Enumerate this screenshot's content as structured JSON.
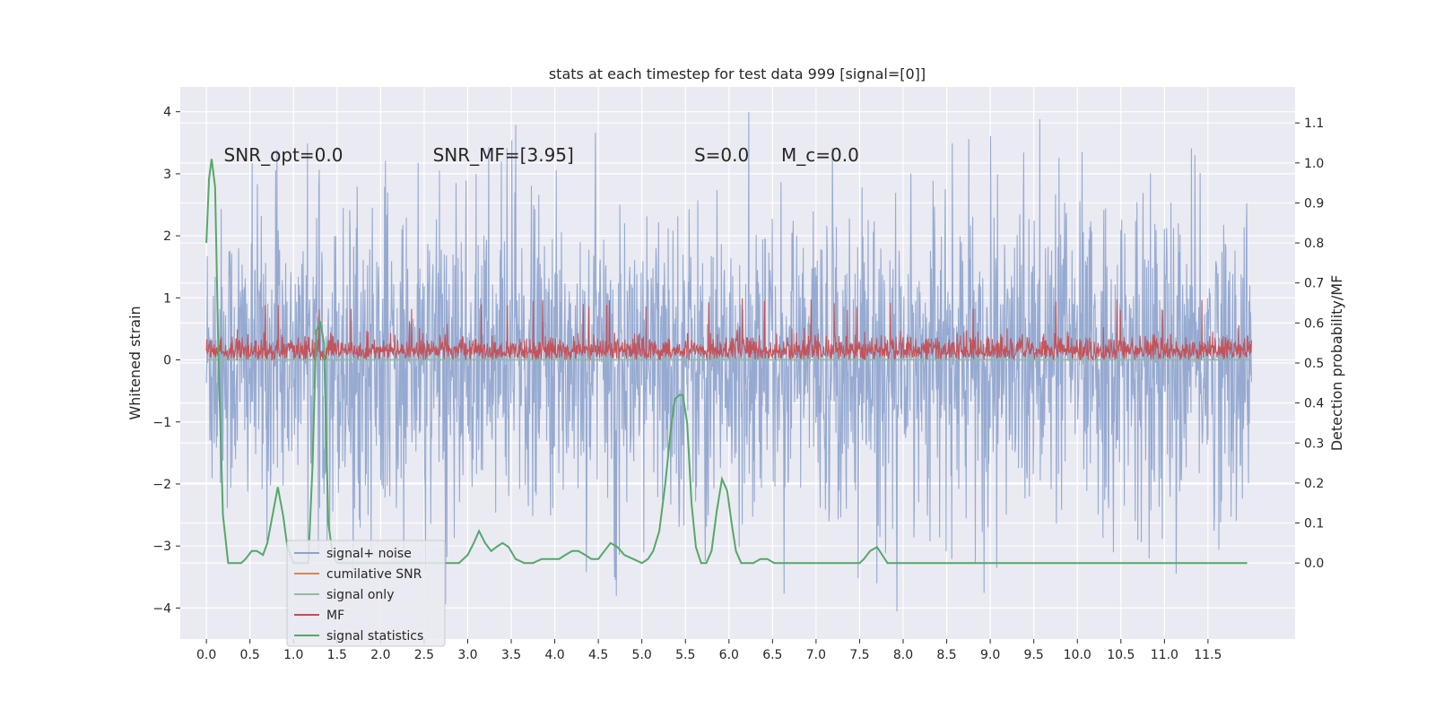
{
  "chart_data": {
    "type": "line",
    "title": "stats at each timestep for test data 999 [signal=[0]]",
    "xlabel": "",
    "ylabel": "Whitened strain",
    "y2label": "Detection probability/MF",
    "xlim": [
      -0.3,
      12.5
    ],
    "ylim": [
      -4.5,
      4.4
    ],
    "y2lim": [
      -0.19,
      1.19
    ],
    "x_ticks": [
      0.0,
      0.5,
      1.0,
      1.5,
      2.0,
      2.5,
      3.0,
      3.5,
      4.0,
      4.5,
      5.0,
      5.5,
      6.0,
      6.5,
      7.0,
      7.5,
      8.0,
      8.5,
      9.0,
      9.5,
      10.0,
      10.5,
      11.0,
      11.5
    ],
    "x_tick_labels": [
      "0.0",
      "0.5",
      "1.0",
      "1.5",
      "2.0",
      "2.5",
      "3.0",
      "3.5",
      "4.0",
      "4.5",
      "5.0",
      "5.5",
      "6.0",
      "6.5",
      "7.0",
      "7.5",
      "8.0",
      "8.5",
      "9.0",
      "9.5",
      "10.0",
      "10.5",
      "11.0",
      "11.5"
    ],
    "y_ticks": [
      -4,
      -3,
      -2,
      -1,
      0,
      1,
      2,
      3,
      4
    ],
    "y_tick_labels": [
      "−4",
      "−3",
      "−2",
      "−1",
      "0",
      "1",
      "2",
      "3",
      "4"
    ],
    "y2_ticks": [
      0.0,
      0.1,
      0.2,
      0.3,
      0.4,
      0.5,
      0.6,
      0.7,
      0.8,
      0.9,
      1.0,
      1.1
    ],
    "y2_tick_labels": [
      "0.0",
      "0.1",
      "0.2",
      "0.3",
      "0.4",
      "0.5",
      "0.6",
      "0.7",
      "0.8",
      "0.9",
      "1.0",
      "1.1"
    ],
    "grid": true,
    "legend_position": "lower-left",
    "annotations": [
      {
        "text": "SNR_opt=0.0",
        "x": 0.2,
        "y": 3.2
      },
      {
        "text": "SNR_MF=[3.95]",
        "x": 2.6,
        "y": 3.2
      },
      {
        "text": "S=0.0",
        "x": 5.6,
        "y": 3.2
      },
      {
        "text": "M_c=0.0",
        "x": 6.6,
        "y": 3.2
      }
    ],
    "series": [
      {
        "name": "signal+ noise",
        "axis": "left",
        "color": "#8da3cd",
        "style": "dense-noise",
        "x_range": [
          0.0,
          12.0
        ],
        "min": -4.1,
        "max": 4.0,
        "typical_envelope": [
          -2.0,
          2.0
        ]
      },
      {
        "name": "cumilative SNR",
        "axis": "left",
        "color": "#dd8452",
        "style": "line",
        "x": [],
        "y": []
      },
      {
        "name": "signal only",
        "axis": "left",
        "color": "#8fbc9b",
        "style": "line",
        "x": [
          0.0,
          12.0
        ],
        "y": [
          0.0,
          0.0
        ]
      },
      {
        "name": "MF",
        "axis": "left",
        "color": "#c44e52",
        "style": "dense-noise",
        "x_range": [
          0.0,
          12.0
        ],
        "min": 0.0,
        "max": 1.0,
        "typical_envelope": [
          0.0,
          0.55
        ]
      },
      {
        "name": "signal statistics",
        "axis": "right",
        "color": "#55a868",
        "style": "line",
        "x": [
          0.0,
          0.03,
          0.06,
          0.1,
          0.14,
          0.19,
          0.25,
          0.32,
          0.4,
          0.45,
          0.52,
          0.58,
          0.65,
          0.7,
          0.76,
          0.82,
          0.88,
          0.93,
          1.0,
          1.06,
          1.12,
          1.17,
          1.22,
          1.26,
          1.31,
          1.35,
          1.4,
          1.45,
          1.5,
          1.6,
          1.7,
          1.8,
          1.9,
          2.0,
          2.2,
          2.4,
          2.6,
          2.8,
          2.9,
          3.0,
          3.07,
          3.13,
          3.2,
          3.27,
          3.33,
          3.4,
          3.47,
          3.55,
          3.65,
          3.75,
          3.85,
          3.95,
          4.05,
          4.12,
          4.2,
          4.27,
          4.35,
          4.42,
          4.5,
          4.57,
          4.64,
          4.72,
          4.8,
          4.9,
          5.0,
          5.07,
          5.13,
          5.2,
          5.27,
          5.33,
          5.38,
          5.43,
          5.47,
          5.52,
          5.57,
          5.62,
          5.68,
          5.74,
          5.8,
          5.86,
          5.92,
          5.98,
          6.03,
          6.08,
          6.14,
          6.2,
          6.28,
          6.36,
          6.44,
          6.52,
          6.6,
          6.68,
          6.76,
          6.85,
          7.0,
          7.2,
          7.4,
          7.5,
          7.55,
          7.62,
          7.7,
          7.76,
          7.82,
          7.9,
          8.0,
          8.2,
          8.5,
          9.0,
          9.5,
          10.0,
          10.5,
          11.0,
          11.5,
          11.95
        ],
        "y": [
          0.8,
          0.96,
          1.01,
          0.94,
          0.5,
          0.12,
          0.0,
          0.0,
          0.0,
          0.01,
          0.03,
          0.03,
          0.02,
          0.05,
          0.12,
          0.19,
          0.12,
          0.04,
          0.0,
          0.0,
          0.0,
          0.0,
          0.25,
          0.58,
          0.6,
          0.55,
          0.1,
          0.02,
          0.0,
          0.0,
          0.0,
          0.0,
          0.0,
          0.0,
          0.0,
          0.0,
          0.0,
          0.0,
          0.0,
          0.02,
          0.05,
          0.08,
          0.05,
          0.03,
          0.04,
          0.05,
          0.04,
          0.01,
          0.0,
          0.0,
          0.01,
          0.01,
          0.01,
          0.02,
          0.03,
          0.03,
          0.02,
          0.01,
          0.01,
          0.03,
          0.05,
          0.04,
          0.02,
          0.01,
          0.0,
          0.01,
          0.03,
          0.08,
          0.2,
          0.33,
          0.41,
          0.42,
          0.42,
          0.35,
          0.15,
          0.04,
          0.0,
          0.0,
          0.03,
          0.13,
          0.21,
          0.18,
          0.1,
          0.03,
          0.0,
          0.0,
          0.0,
          0.01,
          0.01,
          0.0,
          0.0,
          0.0,
          0.0,
          0.0,
          0.0,
          0.0,
          0.0,
          0.0,
          0.01,
          0.03,
          0.04,
          0.02,
          0.0,
          0.0,
          0.0,
          0.0,
          0.0,
          0.0,
          0.0,
          0.0,
          0.0,
          0.0,
          0.0,
          0.0
        ]
      }
    ]
  }
}
